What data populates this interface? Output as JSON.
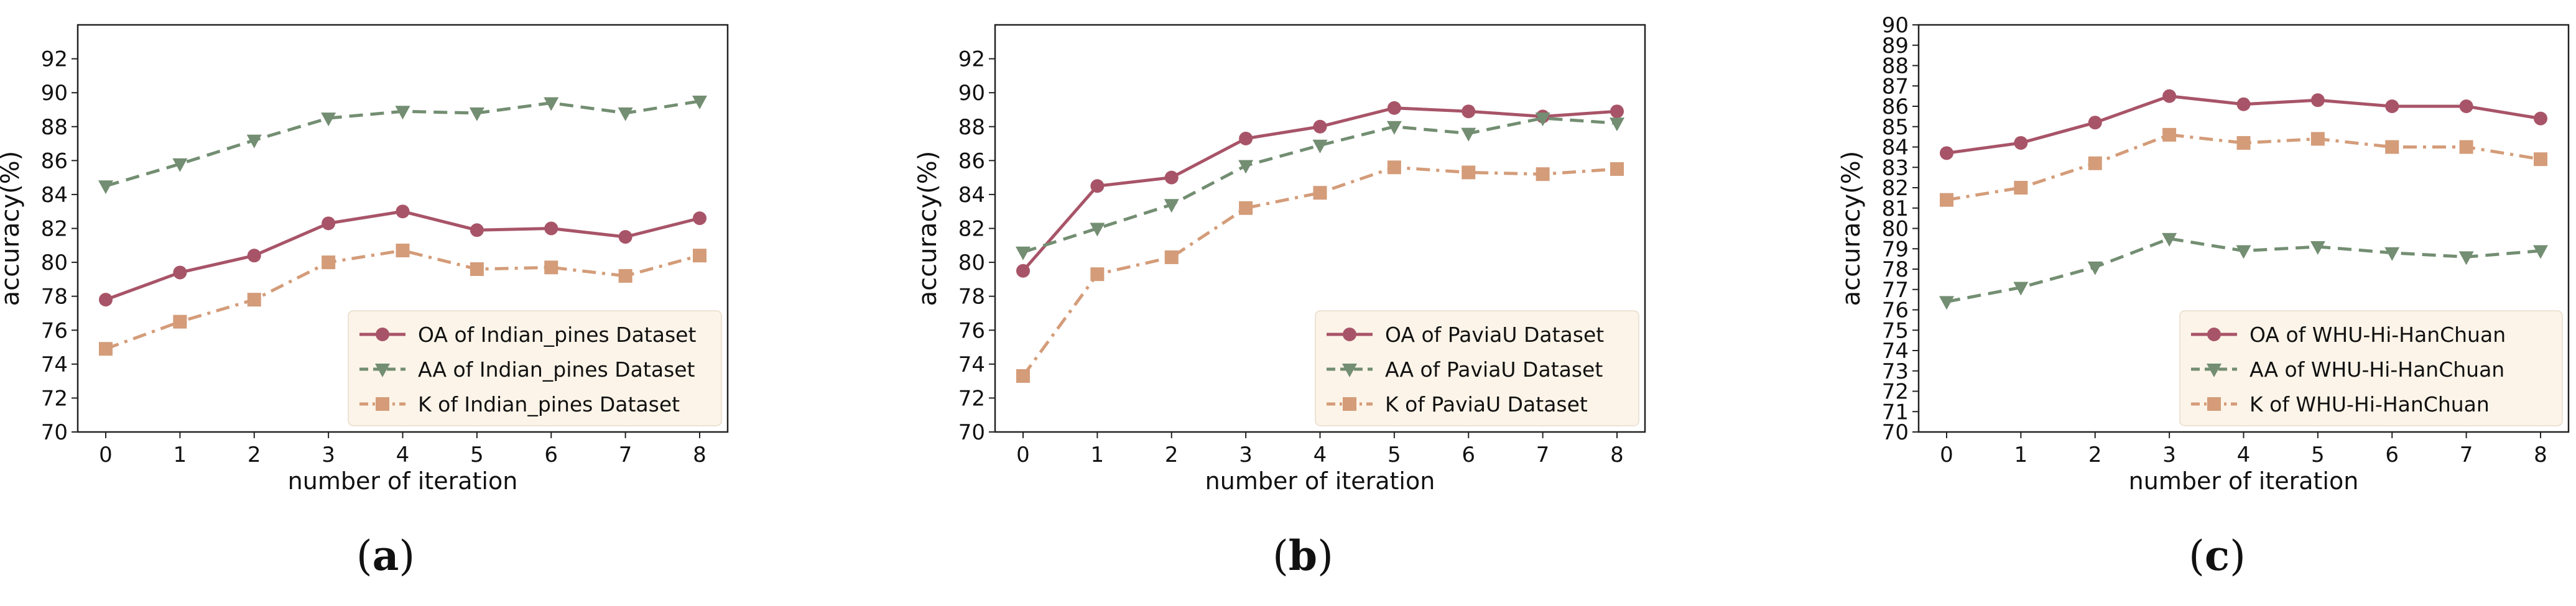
{
  "colors": {
    "oa": "#a85468",
    "aa": "#738e72",
    "k": "#d49c79",
    "legend_bg": "#fcf4e8",
    "axis": "#222222"
  },
  "chart_data": [
    {
      "type": "line",
      "panel": "(a)",
      "xlabel": "number of iteration",
      "ylabel": "accuracy(%)",
      "x": [
        0,
        1,
        2,
        3,
        4,
        5,
        6,
        7,
        8
      ],
      "xlim": [
        0,
        8
      ],
      "ylim": [
        70,
        94
      ],
      "yticks": [
        70,
        72,
        74,
        76,
        78,
        80,
        82,
        84,
        86,
        88,
        90,
        92
      ],
      "grid": false,
      "legend_position": "bottom-right",
      "series": [
        {
          "name": "OA of Indian_pines Dataset",
          "style": "solid",
          "marker": "circle",
          "color_key": "oa",
          "values": [
            77.8,
            79.4,
            80.4,
            82.3,
            83.0,
            81.9,
            82.0,
            81.5,
            82.6
          ]
        },
        {
          "name": "AA of Indian_pines Dataset",
          "style": "dashed",
          "marker": "triangle-down",
          "color_key": "aa",
          "values": [
            84.5,
            85.8,
            87.2,
            88.5,
            88.9,
            88.8,
            89.4,
            88.8,
            89.5
          ]
        },
        {
          "name": "K  of Indian_pines Dataset",
          "style": "dashdot",
          "marker": "square",
          "color_key": "k",
          "values": [
            74.9,
            76.5,
            77.8,
            80.0,
            80.7,
            79.6,
            79.7,
            79.2,
            80.4
          ]
        }
      ]
    },
    {
      "type": "line",
      "panel": "(b)",
      "xlabel": "number of iteration",
      "ylabel": "accuracy(%)",
      "x": [
        0,
        1,
        2,
        3,
        4,
        5,
        6,
        7,
        8
      ],
      "xlim": [
        0,
        8
      ],
      "ylim": [
        70,
        94
      ],
      "yticks": [
        70,
        72,
        74,
        76,
        78,
        80,
        82,
        84,
        86,
        88,
        90,
        92
      ],
      "grid": false,
      "legend_position": "bottom-right",
      "series": [
        {
          "name": "OA of PaviaU Dataset",
          "style": "solid",
          "marker": "circle",
          "color_key": "oa",
          "values": [
            79.5,
            84.5,
            85.0,
            87.3,
            88.0,
            89.1,
            88.9,
            88.6,
            88.9
          ]
        },
        {
          "name": "AA of PaviaU Dataset",
          "style": "dashed",
          "marker": "triangle-down",
          "color_key": "aa",
          "values": [
            80.6,
            82.0,
            83.4,
            85.7,
            86.9,
            88.0,
            87.6,
            88.5,
            88.2
          ]
        },
        {
          "name": "K  of PaviaU Dataset",
          "style": "dashdot",
          "marker": "square",
          "color_key": "k",
          "values": [
            73.3,
            79.3,
            80.3,
            83.2,
            84.1,
            85.6,
            85.3,
            85.2,
            85.5
          ]
        }
      ]
    },
    {
      "type": "line",
      "panel": "(c)",
      "xlabel": "number of iteration",
      "ylabel": "accuracy(%)",
      "x": [
        0,
        1,
        2,
        3,
        4,
        5,
        6,
        7,
        8
      ],
      "xlim": [
        0,
        8
      ],
      "ylim": [
        70,
        90
      ],
      "yticks": [
        70,
        71,
        72,
        73,
        74,
        75,
        76,
        77,
        78,
        79,
        80,
        81,
        82,
        83,
        84,
        85,
        86,
        87,
        88,
        89,
        90
      ],
      "grid": false,
      "legend_position": "bottom-right",
      "series": [
        {
          "name": "OA of WHU-Hi-HanChuan",
          "style": "solid",
          "marker": "circle",
          "color_key": "oa",
          "values": [
            83.7,
            84.2,
            85.2,
            86.5,
            86.1,
            86.3,
            86.0,
            86.0,
            85.4
          ]
        },
        {
          "name": "AA of WHU-Hi-HanChuan",
          "style": "dashed",
          "marker": "triangle-down",
          "color_key": "aa",
          "values": [
            76.4,
            77.1,
            78.1,
            79.5,
            78.9,
            79.1,
            78.8,
            78.6,
            78.9
          ]
        },
        {
          "name": "K  of WHU-Hi-HanChuan",
          "style": "dashdot",
          "marker": "square",
          "color_key": "k",
          "values": [
            81.4,
            82.0,
            83.2,
            84.6,
            84.2,
            84.4,
            84.0,
            84.0,
            83.4
          ]
        }
      ]
    }
  ]
}
